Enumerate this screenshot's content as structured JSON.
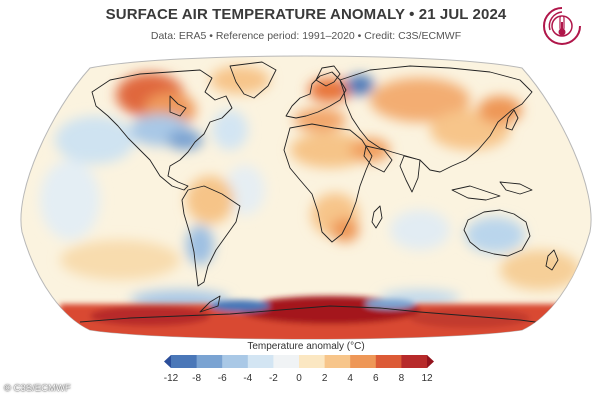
{
  "header": {
    "title": "SURFACE AIR TEMPERATURE ANOMALY • 21 JUL 2024",
    "subtitle": "Data: ERA5 • Reference period: 1991–2020 • Credit: C3S/ECMWF"
  },
  "logo": {
    "icon": "thermometer-logo-icon",
    "color": "#b0164a"
  },
  "map": {
    "projection": "robinson",
    "colors": {
      "warm_strong": "#b2182b",
      "warm_mid": "#e8743a",
      "warm_light": "#f8d79a",
      "neutral": "#fbf6e6",
      "cool_light": "#bfdcee",
      "cool_mid": "#5e9bd0",
      "cool_strong": "#2c5aa0",
      "coastline": "#222222"
    }
  },
  "legend": {
    "title": "Temperature anomaly (°C)",
    "ticks": [
      "-12",
      "-8",
      "-6",
      "-4",
      "-2",
      "0",
      "2",
      "4",
      "6",
      "8",
      "12"
    ],
    "colors": [
      "#2b4e9a",
      "#4a77b8",
      "#7aa3d2",
      "#a9c8e6",
      "#d3e5f3",
      "#f0f3f5",
      "#fbe7c2",
      "#f7c58a",
      "#ee9757",
      "#dc5a36",
      "#b72a2a",
      "#93131d"
    ]
  },
  "footer": {
    "credit": "© C3S/ECMWF"
  }
}
